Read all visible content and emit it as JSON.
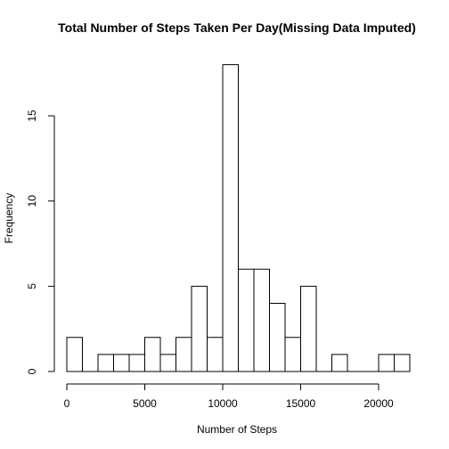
{
  "chart_data": {
    "type": "bar",
    "title": "Total Number of Steps Taken Per Day(Missing Data Imputed)",
    "xlabel": "Number of Steps",
    "ylabel": "Frequency",
    "bin_width": 1000,
    "bins": [
      {
        "start": 0,
        "end": 1000,
        "count": 2
      },
      {
        "start": 1000,
        "end": 2000,
        "count": 0
      },
      {
        "start": 2000,
        "end": 3000,
        "count": 1
      },
      {
        "start": 3000,
        "end": 4000,
        "count": 1
      },
      {
        "start": 4000,
        "end": 5000,
        "count": 1
      },
      {
        "start": 5000,
        "end": 6000,
        "count": 2
      },
      {
        "start": 6000,
        "end": 7000,
        "count": 1
      },
      {
        "start": 7000,
        "end": 8000,
        "count": 2
      },
      {
        "start": 8000,
        "end": 9000,
        "count": 5
      },
      {
        "start": 9000,
        "end": 10000,
        "count": 2
      },
      {
        "start": 10000,
        "end": 11000,
        "count": 18
      },
      {
        "start": 11000,
        "end": 12000,
        "count": 6
      },
      {
        "start": 12000,
        "end": 13000,
        "count": 6
      },
      {
        "start": 13000,
        "end": 14000,
        "count": 4
      },
      {
        "start": 14000,
        "end": 15000,
        "count": 2
      },
      {
        "start": 15000,
        "end": 16000,
        "count": 5
      },
      {
        "start": 16000,
        "end": 17000,
        "count": 0
      },
      {
        "start": 17000,
        "end": 18000,
        "count": 1
      },
      {
        "start": 18000,
        "end": 19000,
        "count": 0
      },
      {
        "start": 19000,
        "end": 20000,
        "count": 0
      },
      {
        "start": 20000,
        "end": 21000,
        "count": 1
      },
      {
        "start": 21000,
        "end": 22000,
        "count": 1
      }
    ],
    "xlim": [
      0,
      22000
    ],
    "ylim": [
      0,
      18
    ],
    "x_ticks": [
      0,
      5000,
      10000,
      15000,
      20000
    ],
    "x_tick_labels": [
      "0",
      "5000",
      "10000",
      "15000",
      "20000"
    ],
    "y_ticks": [
      0,
      5,
      10,
      15
    ],
    "y_tick_labels": [
      "0",
      "5",
      "10",
      "15"
    ],
    "grid": false,
    "bar_fill": "#ffffff",
    "bar_stroke": "#000000"
  }
}
